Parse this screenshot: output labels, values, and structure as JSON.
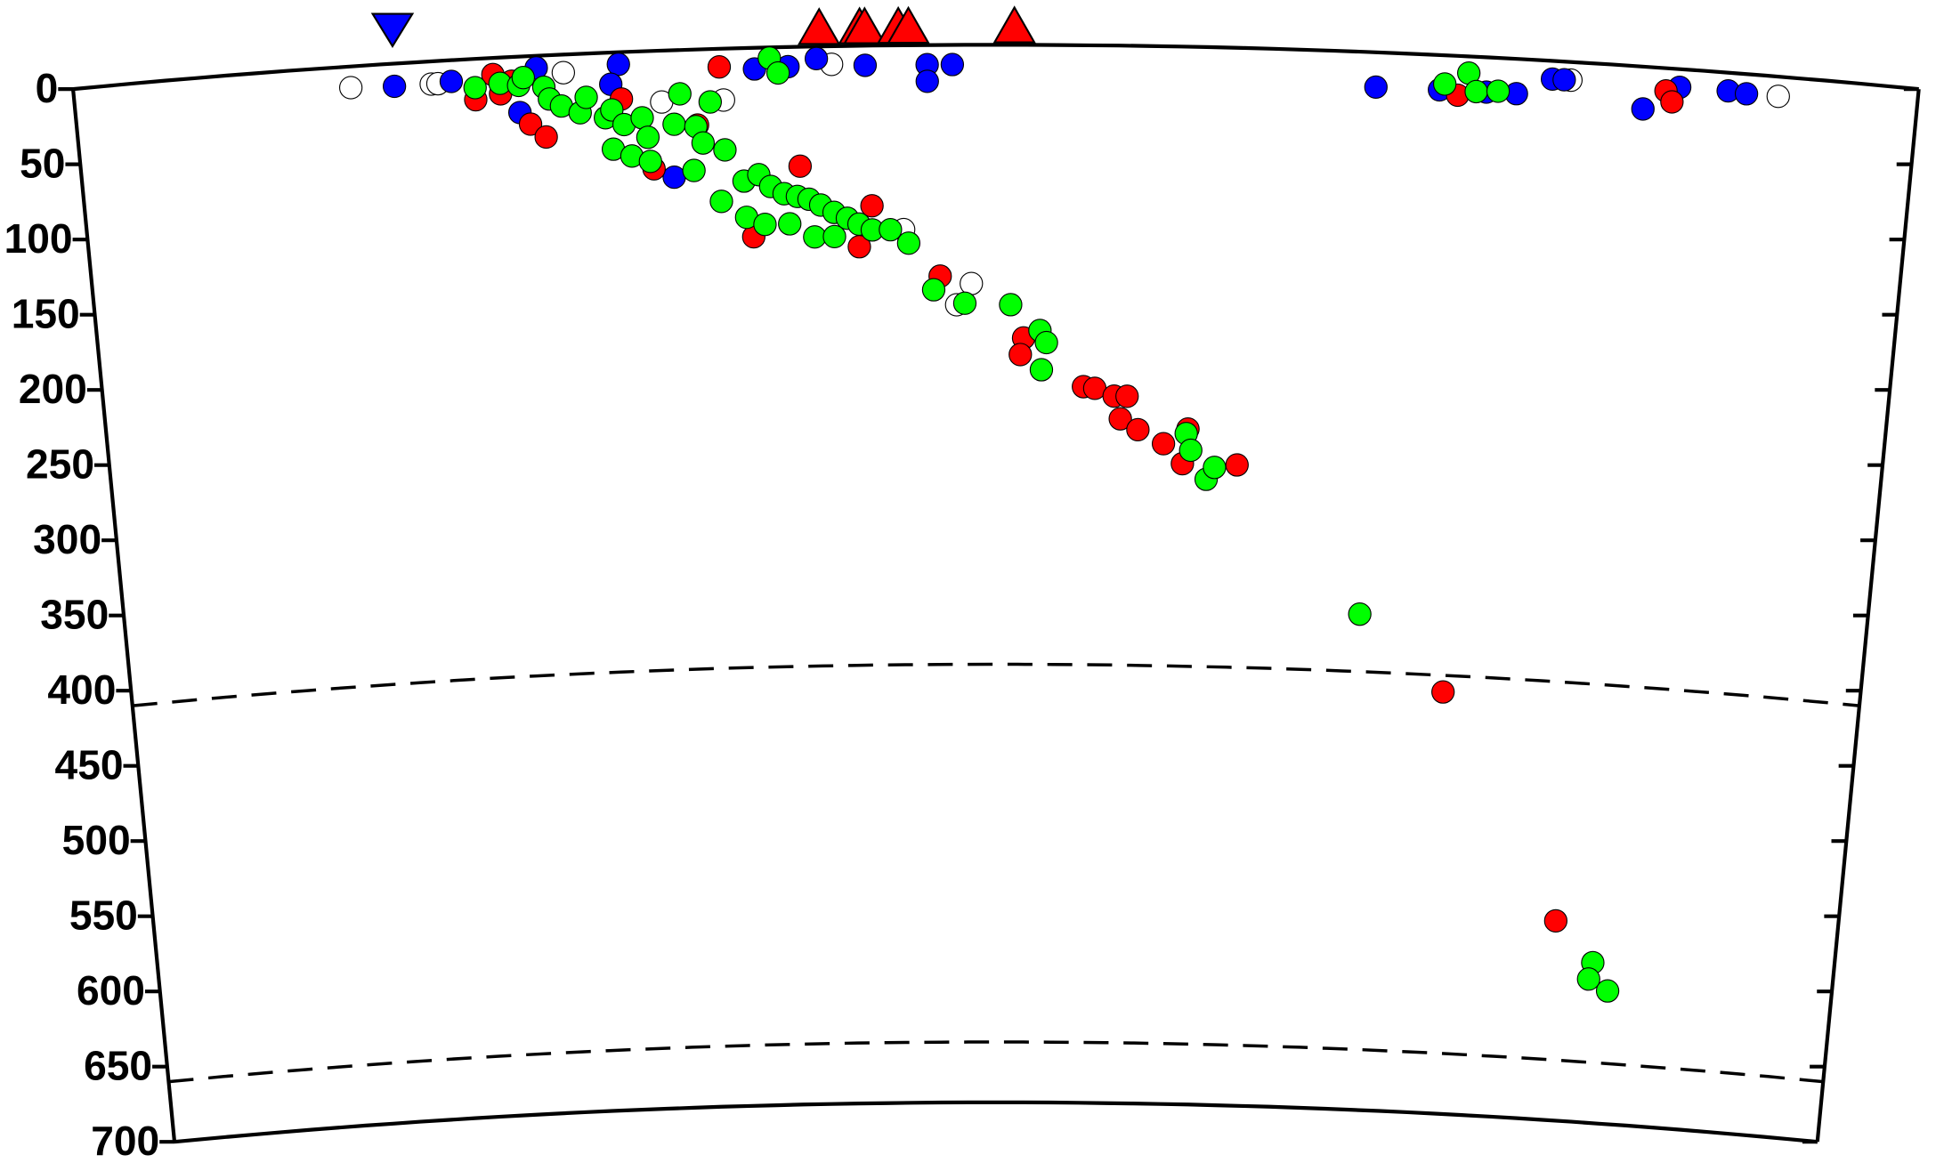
{
  "chart_data": {
    "type": "scatter",
    "xlim": [
      0,
      11
    ],
    "ylim": [
      0,
      700
    ],
    "y_inverted": true,
    "yticks": [
      0,
      50,
      100,
      150,
      200,
      250,
      300,
      350,
      400,
      450,
      500,
      550,
      600,
      650,
      700
    ],
    "discontinuities": [
      410,
      660
    ],
    "stations": {
      "color": "#ff0000",
      "x": [
        4.45,
        4.69,
        4.72,
        4.92,
        4.98,
        5.61
      ]
    },
    "trench": {
      "color": "#0000ff",
      "x": [
        1.92
      ]
    },
    "series": [
      {
        "color": "#ffffff",
        "x": [
          1.65,
          2.13,
          2.17,
          2.92,
          3.5,
          3.87,
          4.52,
          4.94,
          5.35,
          5.26,
          8.93,
          10.17
        ],
        "values": [
          14,
          15,
          15,
          12,
          34,
          34,
          12,
          122,
          158,
          172,
          12,
          13
        ]
      },
      {
        "color": "#0000ff",
        "x": [
          1.91,
          2.25,
          2.76,
          3.25,
          3.2,
          2.65,
          3.56,
          4.06,
          4.26,
          4.43,
          4.72,
          5.09,
          5.24,
          5.09,
          7.77,
          8.15,
          8.43,
          8.61,
          8.82,
          8.89,
          9.37,
          9.58,
          9.87,
          9.98
        ],
        "values": [
          15,
          14,
          8,
          8,
          21,
          37,
          84,
          14,
          13,
          8,
          13,
          13,
          13,
          24,
          23,
          23,
          23,
          23,
          12,
          12,
          28,
          12,
          12,
          13
        ]
      },
      {
        "color": "#ff0000",
        "x": [
          2.39,
          2.5,
          2.61,
          2.71,
          2.8,
          2.54,
          3.26,
          3.44,
          3.71,
          3.85,
          4.32,
          4.75,
          4.03,
          4.67,
          5.16,
          5.67,
          5.65,
          6.04,
          6.11,
          6.23,
          6.31,
          6.27,
          6.38,
          6.54,
          6.69,
          6.66,
          7.0,
          8.35,
          9.16,
          9.5,
          9.54,
          8.26
        ],
        "values": [
          27,
          11,
          16,
          45,
          54,
          24,
          31,
          78,
          50,
          12,
          79,
          106,
          125,
          133,
          153,
          194,
          205,
          226,
          227,
          232,
          232,
          247,
          254,
          263,
          253,
          276,
          276,
          421,
          568,
          15,
          22,
          26
        ]
      },
      {
        "color": "#00ff00",
        "x": [
          2.39,
          2.54,
          2.65,
          2.68,
          2.8,
          2.83,
          2.9,
          3.01,
          3.05,
          3.16,
          3.2,
          3.27,
          3.38,
          3.41,
          3.2,
          3.31,
          3.42,
          3.61,
          3.79,
          3.57,
          3.7,
          3.74,
          3.87,
          3.68,
          4.15,
          4.2,
          3.84,
          3.98,
          4.07,
          4.14,
          4.22,
          4.3,
          4.37,
          4.44,
          4.52,
          4.6,
          4.67,
          4.75,
          4.86,
          4.97,
          3.99,
          4.1,
          4.25,
          4.4,
          4.52,
          5.12,
          5.31,
          5.59,
          5.77,
          5.81,
          5.78,
          6.68,
          6.71,
          6.81,
          6.86,
          7.8,
          8.18,
          8.32,
          8.37,
          8.5,
          9.42,
          9.4,
          9.53
        ],
        "values": [
          19,
          17,
          19,
          14,
          21,
          29,
          34,
          39,
          29,
          43,
          38,
          48,
          44,
          57,
          64,
          69,
          73,
          29,
          35,
          49,
          51,
          62,
          67,
          80,
          7,
          17,
          101,
          88,
          84,
          92,
          97,
          99,
          101,
          105,
          110,
          114,
          118,
          122,
          122,
          131,
          112,
          117,
          117,
          126,
          126,
          162,
          171,
          172,
          189,
          197,
          215,
          256,
          267,
          286,
          278,
          372,
          19,
          11,
          23,
          22,
          594,
          605,
          612
        ]
      }
    ]
  }
}
